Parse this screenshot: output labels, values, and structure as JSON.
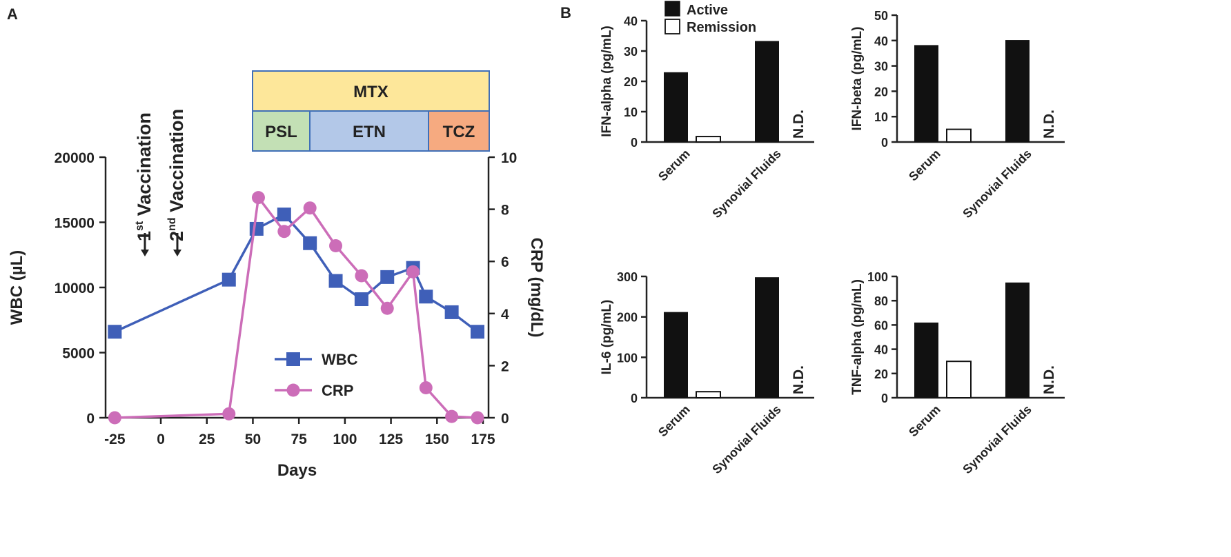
{
  "chart_data": [
    {
      "type": "line",
      "panel": "A",
      "xlabel": "Days",
      "ylabel": "WBC (µL)",
      "y2label": "CRP (mg/dL)",
      "xlim": [
        -30,
        178
      ],
      "xticks": [
        "-25",
        "0",
        "25",
        "50",
        "75",
        "100",
        "125",
        "150",
        "175"
      ],
      "ylim": [
        0,
        20000
      ],
      "yticks": [
        "0",
        "5000",
        "10000",
        "15000",
        "20000"
      ],
      "y2lim": [
        0,
        10
      ],
      "y2ticks": [
        "0",
        "2",
        "4",
        "6",
        "8",
        "10"
      ],
      "series": [
        {
          "name": "WBC",
          "axis": "left",
          "marker": "square",
          "color": "#3F5FB8",
          "x": [
            -25,
            37,
            52,
            67,
            81,
            95,
            109,
            123,
            137,
            144,
            158,
            172
          ],
          "values": [
            6600,
            10600,
            14500,
            15600,
            13400,
            10500,
            9100,
            10800,
            11500,
            9300,
            8100,
            6600
          ]
        },
        {
          "name": "CRP",
          "axis": "right",
          "marker": "circle",
          "color": "#CC6DB8",
          "x": [
            -25,
            37,
            53,
            67,
            81,
            95,
            109,
            123,
            137,
            144,
            158,
            172
          ],
          "values": [
            0,
            0.15,
            8.45,
            7.15,
            8.05,
            6.6,
            5.45,
            4.2,
            5.6,
            1.15,
            0.05,
            0
          ]
        }
      ],
      "annotations": [
        {
          "label": "1",
          "sup": "st",
          "text": " Vaccination",
          "x": -5
        },
        {
          "label": "2",
          "sup": "nd",
          "text": " Vaccination",
          "x": 13
        }
      ],
      "treatments": {
        "top": {
          "label": "MTX",
          "color": "#FDE79A"
        },
        "bottom": [
          {
            "label": "PSL",
            "color": "#C3E0B5"
          },
          {
            "label": "ETN",
            "color": "#B3C8E8"
          },
          {
            "label": "TCZ",
            "color": "#F6AA80"
          }
        ],
        "border_color": "#3F6FB8"
      },
      "legend_position": "bottom-center"
    },
    {
      "type": "bar",
      "panel": "B",
      "legend": [
        "Active",
        "Remission"
      ],
      "categories": [
        "Serum",
        "Synovial Fluids"
      ],
      "nd_label": "N.D.",
      "subplots": [
        {
          "ylabel": "IFN-alpha (pg/mL)",
          "ylim": [
            0,
            40
          ],
          "yticks": [
            "0",
            "10",
            "20",
            "30",
            "40"
          ],
          "active": [
            23,
            33.3
          ],
          "remission": [
            1.8,
            null
          ]
        },
        {
          "ylabel": "IFN-beta (pg/mL)",
          "ylim": [
            0,
            50
          ],
          "yticks": [
            "0",
            "10",
            "20",
            "30",
            "40",
            "50"
          ],
          "active": [
            38.2,
            40.2
          ],
          "remission": [
            5,
            null
          ]
        },
        {
          "ylabel": "IL-6 (pg/mL)",
          "ylim": [
            0,
            300
          ],
          "yticks": [
            "0",
            "100",
            "200",
            "300"
          ],
          "active": [
            212,
            298
          ],
          "remission": [
            15,
            null
          ]
        },
        {
          "ylabel": "TNF-alpha (pg/mL)",
          "ylim": [
            0,
            100
          ],
          "yticks": [
            "0",
            "20",
            "40",
            "60",
            "80",
            "100"
          ],
          "active": [
            62,
            95
          ],
          "remission": [
            30,
            null
          ]
        }
      ]
    }
  ]
}
